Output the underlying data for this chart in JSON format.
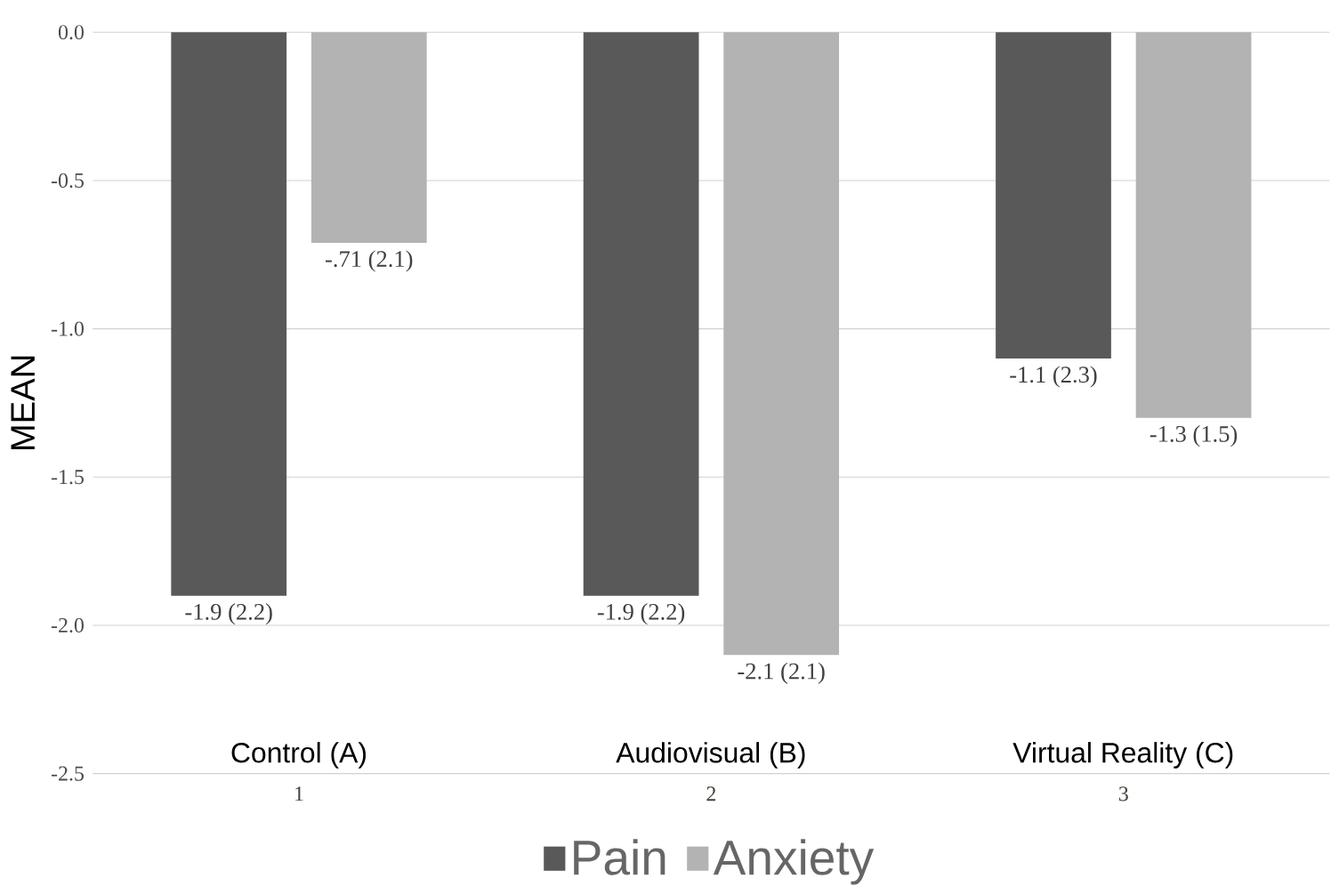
{
  "chart_data": {
    "type": "bar",
    "ylabel": "MEAN",
    "categories": [
      "1",
      "2",
      "3"
    ],
    "series": [
      {
        "name": "Pain",
        "color": "#595959",
        "values": [
          -1.9,
          -1.9,
          -1.1
        ],
        "value_labels": [
          "-1.9 (2.2)",
          "-1.9 (2.2)",
          "-1.1 (2.3)"
        ]
      },
      {
        "name": "Anxiety",
        "color": "#b3b3b3",
        "values": [
          -0.71,
          -2.1,
          -1.3
        ],
        "value_labels": [
          "-.71 (2.1)",
          "-2.1 (2.1)",
          "-1.3 (1.5)"
        ]
      }
    ],
    "ylim": [
      -2.5,
      0
    ],
    "yticks": [
      {
        "value": -2.5,
        "label": "-2.5"
      },
      {
        "value": -2,
        "label": "-2.0"
      },
      {
        "value": -1.5,
        "label": "-1.5"
      },
      {
        "value": -1,
        "label": "-1.0"
      },
      {
        "value": -0.5,
        "label": "-0.5"
      },
      {
        "value": 0,
        "label": "0.0"
      }
    ],
    "grid": "y",
    "legend": "bottom",
    "annotations": [
      "Control (A)",
      "Audiovisual (B)",
      "Virtual Reality (C)"
    ]
  }
}
